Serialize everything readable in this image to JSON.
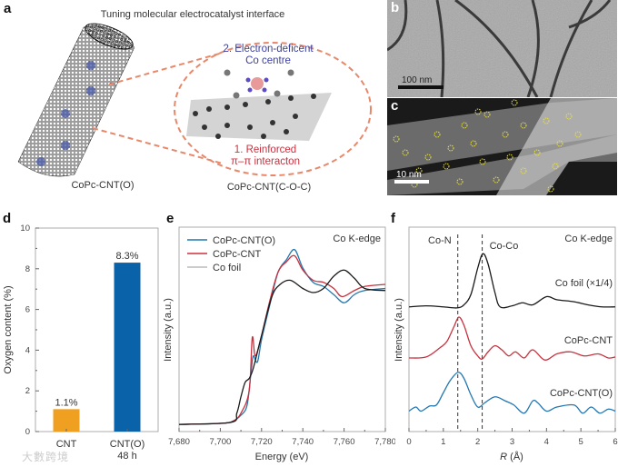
{
  "panel_labels": {
    "a": "a",
    "b": "b",
    "c": "c",
    "d": "d",
    "e": "e",
    "f": "f"
  },
  "panel_a": {
    "title": "Tuning molecular electrocatalyst interface",
    "left_label": "CoPc-CNT(O)",
    "right_label": "CoPc-CNT(C-O-C)",
    "annotation_1_line1": "1. Reinforced",
    "annotation_1_line2": "π–π interacton",
    "annotation_2_line1": "2. Electron-deficent",
    "annotation_2_line2": "Co centre"
  },
  "panel_b": {
    "scale_bar": "100 nm"
  },
  "panel_c": {
    "scale_bar": "10 nm"
  },
  "watermark": "大數跨境",
  "colors": {
    "orange": "#f0a020",
    "blue": "#0a62a8",
    "copc_cnt_o": "#2377b0",
    "copc_cnt": "#c8323f",
    "co_foil": "#1a1a1a",
    "annot_red": "#c8323f",
    "annot_blue": "#3a3ea0",
    "dash_orange": "#e8886a"
  },
  "chart_data": [
    {
      "id": "d",
      "type": "bar",
      "ylabel": "Oxygen content (%)",
      "ylim": [
        0,
        10
      ],
      "yticks": [
        "0",
        "2",
        "4",
        "6",
        "8",
        "10"
      ],
      "categories": [
        "CNT",
        "CNT(O)"
      ],
      "category_sublabels": [
        "",
        "48 h"
      ],
      "values": [
        1.1,
        8.3
      ],
      "data_labels": [
        "1.1%",
        "8.3%"
      ]
    },
    {
      "id": "e",
      "type": "line",
      "annotation": "Co K-edge",
      "xlabel": "Energy (eV)",
      "ylabel": "Intensity (a.u.)",
      "xlim": [
        7680,
        7780
      ],
      "ylim": [
        0,
        1
      ],
      "xticks": [
        "7,680",
        "7,700",
        "7,720",
        "7,740",
        "7,760",
        "7,780"
      ],
      "legend_position": "top-left",
      "series": [
        {
          "name": "CoPc-CNT(O)",
          "color": "#2377b0",
          "x": [
            7680,
            7700,
            7706,
            7710,
            7713,
            7715,
            7716,
            7718,
            7720,
            7724,
            7728,
            7732,
            7736,
            7740,
            7745,
            7750,
            7755,
            7760,
            7765,
            7770,
            7780
          ],
          "y": [
            0.035,
            0.04,
            0.05,
            0.08,
            0.13,
            0.3,
            0.37,
            0.34,
            0.45,
            0.62,
            0.78,
            0.84,
            0.89,
            0.8,
            0.73,
            0.71,
            0.67,
            0.63,
            0.67,
            0.69,
            0.7
          ]
        },
        {
          "name": "CoPc-CNT",
          "color": "#c8323f",
          "x": [
            7680,
            7700,
            7706,
            7710,
            7714,
            7715.5,
            7717,
            7720,
            7724,
            7728,
            7732,
            7736,
            7740,
            7745,
            7750,
            7755,
            7759,
            7765,
            7770,
            7780
          ],
          "y": [
            0.035,
            0.04,
            0.05,
            0.09,
            0.2,
            0.46,
            0.37,
            0.47,
            0.64,
            0.78,
            0.83,
            0.86,
            0.79,
            0.74,
            0.73,
            0.7,
            0.66,
            0.69,
            0.71,
            0.72
          ]
        },
        {
          "name": "Co foil",
          "color": "#1a1a1a",
          "x": [
            7680,
            7705,
            7708,
            7710,
            7712,
            7714,
            7716,
            7720,
            7725,
            7729,
            7734,
            7740,
            7745,
            7750,
            7755,
            7760,
            7765,
            7770,
            7780
          ],
          "y": [
            0.035,
            0.045,
            0.09,
            0.17,
            0.24,
            0.26,
            0.31,
            0.47,
            0.66,
            0.72,
            0.74,
            0.7,
            0.68,
            0.7,
            0.76,
            0.79,
            0.75,
            0.7,
            0.69
          ]
        }
      ]
    },
    {
      "id": "f",
      "type": "line",
      "annotation": "Co K-edge",
      "xlabel": "R (Å)",
      "xlabel_italic": "R",
      "xlabel_unit": " (Å)",
      "ylabel": "Intensity (a.u.)",
      "xlim": [
        0,
        6
      ],
      "ylim": [
        0,
        1
      ],
      "xticks": [
        "0",
        "1",
        "2",
        "3",
        "4",
        "5",
        "6"
      ],
      "reference_lines": [
        {
          "label": "Co-N",
          "x": 1.42
        },
        {
          "label": "Co-Co",
          "x": 2.13
        }
      ],
      "series": [
        {
          "name": "Co foil (×1/4)",
          "color": "#1a1a1a",
          "x": [
            0,
            0.5,
            1,
            1.4,
            1.6,
            1.8,
            2.0,
            2.15,
            2.3,
            2.5,
            2.65,
            3,
            3.3,
            3.6,
            4.0,
            4.3,
            4.8,
            5.2,
            5.6,
            6
          ],
          "y": [
            0.61,
            0.615,
            0.61,
            0.605,
            0.62,
            0.67,
            0.8,
            0.87,
            0.82,
            0.68,
            0.61,
            0.615,
            0.63,
            0.62,
            0.66,
            0.645,
            0.635,
            0.62,
            0.61,
            0.61
          ]
        },
        {
          "name": "CoPc-CNT",
          "color": "#c8323f",
          "x": [
            0,
            0.5,
            0.9,
            1.1,
            1.3,
            1.45,
            1.6,
            1.8,
            2.0,
            2.13,
            2.3,
            2.5,
            2.7,
            2.9,
            3.1,
            3.35,
            3.6,
            3.95,
            4.3,
            4.7,
            5.1,
            5.5,
            5.8,
            6
          ],
          "y": [
            0.36,
            0.365,
            0.41,
            0.44,
            0.51,
            0.56,
            0.52,
            0.42,
            0.37,
            0.355,
            0.39,
            0.42,
            0.4,
            0.37,
            0.39,
            0.36,
            0.4,
            0.35,
            0.38,
            0.39,
            0.37,
            0.38,
            0.36,
            0.365
          ]
        },
        {
          "name": "CoPc-CNT(O)",
          "color": "#2377b0",
          "x": [
            0,
            0.2,
            0.35,
            0.6,
            0.8,
            1.0,
            1.2,
            1.43,
            1.6,
            1.8,
            2.0,
            2.2,
            2.5,
            2.8,
            3.05,
            3.35,
            3.6,
            3.75,
            4.0,
            4.3,
            4.8,
            5.05,
            5.3,
            5.55,
            5.8,
            6
          ],
          "y": [
            0.1,
            0.12,
            0.1,
            0.125,
            0.13,
            0.19,
            0.25,
            0.29,
            0.26,
            0.18,
            0.12,
            0.14,
            0.17,
            0.15,
            0.13,
            0.09,
            0.15,
            0.14,
            0.1,
            0.12,
            0.13,
            0.09,
            0.12,
            0.09,
            0.11,
            0.1
          ]
        }
      ]
    }
  ]
}
